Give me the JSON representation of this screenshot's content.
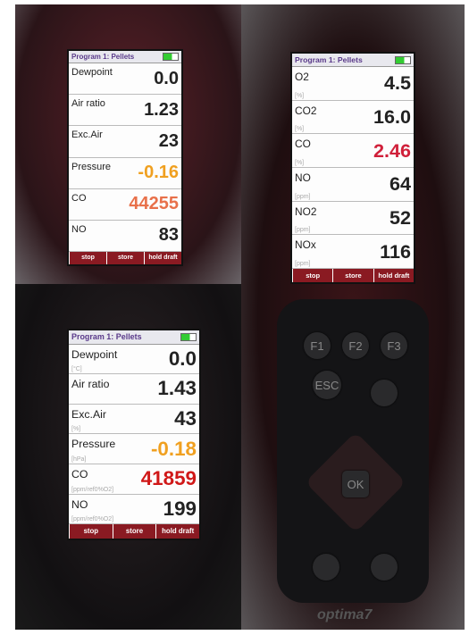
{
  "screens": [
    {
      "header": {
        "title": "Program 1: Pellets"
      },
      "rows": [
        {
          "label": "Dewpoint",
          "value": "0.0"
        },
        {
          "label": "Air ratio",
          "value": "1.23"
        },
        {
          "label": "Exc.Air",
          "value": "23"
        },
        {
          "label": "Pressure",
          "value": "-0.16",
          "color": "#f0a020"
        },
        {
          "label": "CO",
          "value": "44255",
          "color": "#e8704a"
        },
        {
          "label": "NO",
          "value": "83"
        }
      ],
      "buttons": [
        "stop",
        "store",
        "hold draft"
      ]
    },
    {
      "header": {
        "title": "Program 1: Pellets"
      },
      "rows": [
        {
          "label": "O2",
          "unit": "[%]",
          "value": "4.5"
        },
        {
          "label": "CO2",
          "unit": "[%]",
          "value": "16.0"
        },
        {
          "label": "CO",
          "unit": "[%]",
          "value": "2.46",
          "color": "#d0203a"
        },
        {
          "label": "NO",
          "unit": "[ppm]",
          "value": "64"
        },
        {
          "label": "NO2",
          "unit": "[ppm]",
          "value": "52"
        },
        {
          "label": "NOx",
          "unit": "[ppm]",
          "value": "116"
        }
      ],
      "buttons": [
        "stop",
        "store",
        "hold draft"
      ]
    },
    {
      "header": {
        "title": "Program 1: Pellets"
      },
      "rows": [
        {
          "label": "Dewpoint",
          "unit": "[°C]",
          "value": "0.0"
        },
        {
          "label": "Air ratio",
          "value": "1.43"
        },
        {
          "label": "Exc.Air",
          "unit": "[%]",
          "value": "43"
        },
        {
          "label": "Pressure",
          "unit": "[hPa]",
          "value": "-0.18",
          "color": "#f0a020"
        },
        {
          "label": "CO",
          "unit": "[ppm/ref0%O2]",
          "value": "41859",
          "color": "#d01818"
        },
        {
          "label": "NO",
          "unit": "[ppm/ref0%O2]",
          "value": "199"
        }
      ],
      "buttons": [
        "stop",
        "store",
        "hold draft"
      ]
    }
  ],
  "keypad": {
    "keys": [
      "F1",
      "F2",
      "F3",
      "ESC",
      "OK"
    ],
    "brand": "optima7"
  }
}
